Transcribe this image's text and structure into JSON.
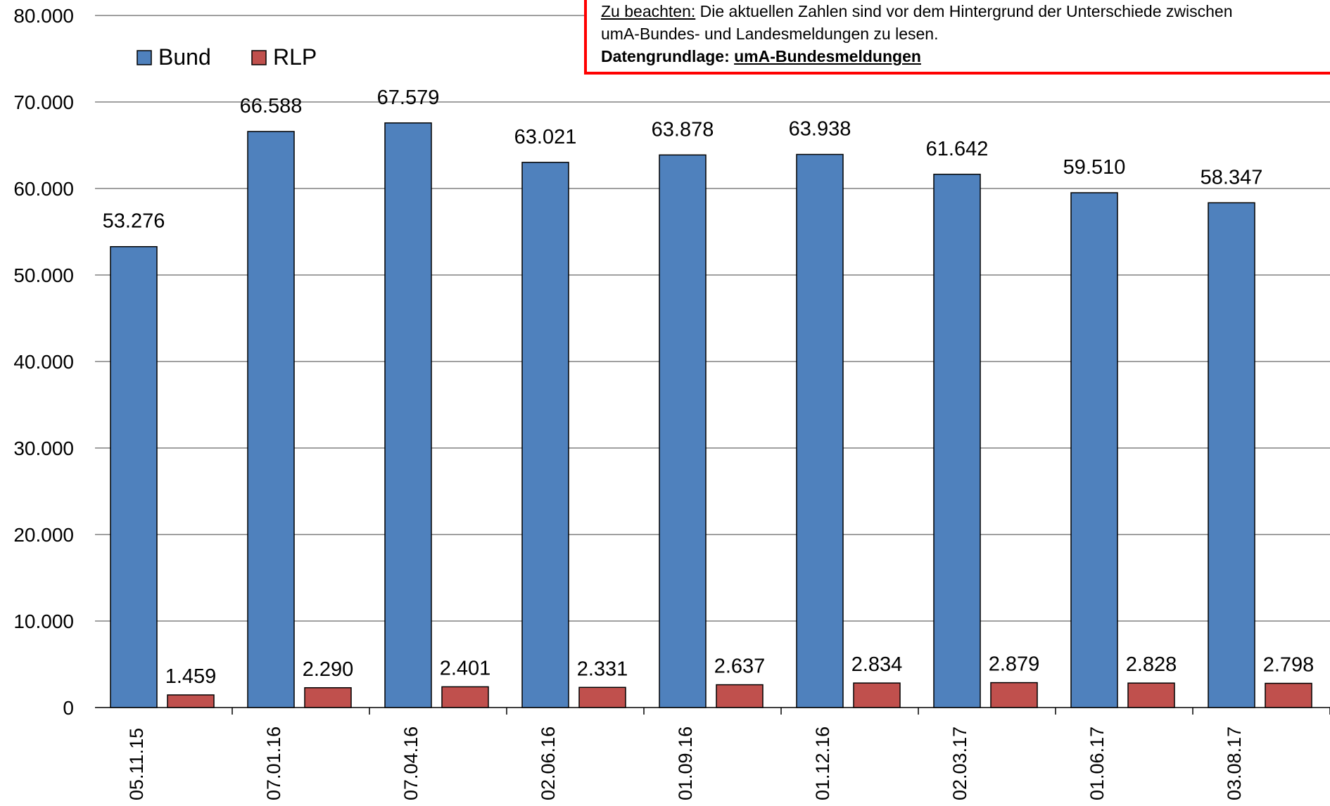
{
  "colors": {
    "bund": "#4f81bd",
    "rlp": "#c0504d",
    "grid": "#808080",
    "note_border": "#ff0000"
  },
  "note": {
    "label_prefix": "Zu beachten:",
    "line1_rest": " Die aktuellen Zahlen sind vor dem Hintergrund der Unterschiede zwischen",
    "line2": "umA-Bundes- und Landesmeldungen zu lesen.",
    "line3_bold": "Datengrundlage: ",
    "line3_bold_underlined": "umA-Bundesmeldungen"
  },
  "chart_data": {
    "type": "bar",
    "title": "",
    "xlabel": "",
    "ylabel": "",
    "ylim": [
      0,
      80000
    ],
    "yticks": [
      0,
      10000,
      20000,
      30000,
      40000,
      50000,
      60000,
      70000,
      80000
    ],
    "ytick_labels": [
      "0",
      "10.000",
      "20.000",
      "30.000",
      "40.000",
      "50.000",
      "60.000",
      "70.000",
      "80.000"
    ],
    "grid": true,
    "legend_position": "top-left",
    "categories": [
      "05.11.15",
      "07.01.16",
      "07.04.16",
      "02.06.16",
      "01.09.16",
      "01.12.16",
      "02.03.17",
      "01.06.17",
      "03.08.17"
    ],
    "series": [
      {
        "name": "Bund",
        "color": "#4f81bd",
        "values": [
          53276,
          66588,
          67579,
          63021,
          63878,
          63938,
          61642,
          59510,
          58347
        ],
        "labels": [
          "53.276",
          "66.588",
          "67.579",
          "63.021",
          "63.878",
          "63.938",
          "61.642",
          "59.510",
          "58.347"
        ]
      },
      {
        "name": "RLP",
        "color": "#c0504d",
        "values": [
          1459,
          2290,
          2401,
          2331,
          2637,
          2834,
          2879,
          2828,
          2798
        ],
        "labels": [
          "1.459",
          "2.290",
          "2.401",
          "2.331",
          "2.637",
          "2.834",
          "2.879",
          "2.828",
          "2.798"
        ]
      }
    ]
  }
}
